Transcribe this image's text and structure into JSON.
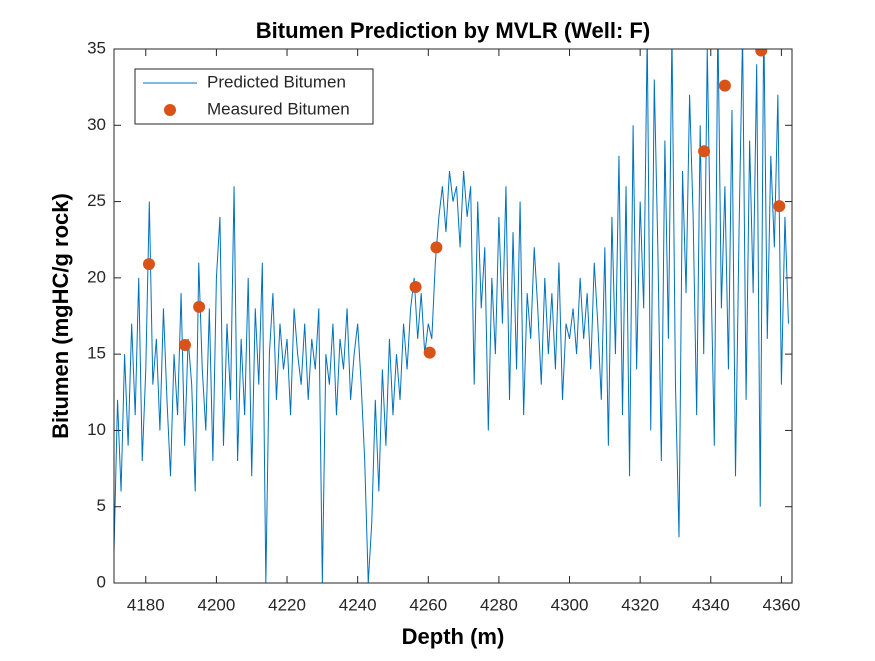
{
  "chart_data": {
    "type": "line",
    "title": "Bitumen Prediction by MVLR (Well: F)",
    "x_label": "Depth (m)",
    "y_label": "Bitumen (mgHC/g rock)",
    "xlim": [
      4171,
      4363
    ],
    "ylim": [
      0,
      35
    ],
    "xticks": [
      4180,
      4200,
      4220,
      4240,
      4260,
      4280,
      4300,
      4320,
      4340,
      4360
    ],
    "yticks": [
      0,
      5,
      10,
      15,
      20,
      25,
      30,
      35
    ],
    "legend": "upper left",
    "series": [
      {
        "name": "Predicted Bitumen",
        "type": "line",
        "color": "#0072BD",
        "x": [
          4171,
          4172,
          4173,
          4174,
          4175,
          4176,
          4177,
          4178,
          4179,
          4180,
          4181,
          4182,
          4183,
          4184,
          4185,
          4186,
          4187,
          4188,
          4189,
          4190,
          4191,
          4192,
          4193,
          4194,
          4195,
          4196,
          4197,
          4198,
          4199,
          4200,
          4201,
          4202,
          4203,
          4204,
          4205,
          4206,
          4207,
          4208,
          4209,
          4210,
          4211,
          4212,
          4213,
          4214,
          4215,
          4216,
          4217,
          4218,
          4219,
          4220,
          4221,
          4222,
          4223,
          4224,
          4225,
          4226,
          4227,
          4228,
          4229,
          4230,
          4231,
          4232,
          4233,
          4234,
          4235,
          4236,
          4237,
          4238,
          4239,
          4240,
          4241,
          4242,
          4243,
          4244,
          4245,
          4246,
          4247,
          4248,
          4249,
          4250,
          4251,
          4252,
          4253,
          4254,
          4255,
          4256,
          4257,
          4258,
          4259,
          4260,
          4261,
          4262,
          4263,
          4264,
          4265,
          4266,
          4267,
          4268,
          4269,
          4270,
          4271,
          4272,
          4273,
          4274,
          4275,
          4276,
          4277,
          4278,
          4279,
          4280,
          4281,
          4282,
          4283,
          4284,
          4285,
          4286,
          4287,
          4288,
          4289,
          4290,
          4291,
          4292,
          4293,
          4294,
          4295,
          4296,
          4297,
          4298,
          4299,
          4300,
          4301,
          4302,
          4303,
          4304,
          4305,
          4306,
          4307,
          4308,
          4309,
          4310,
          4311,
          4312,
          4313,
          4314,
          4315,
          4316,
          4317,
          4318,
          4319,
          4320,
          4321,
          4322,
          4323,
          4324,
          4325,
          4326,
          4327,
          4328,
          4329,
          4330,
          4331,
          4332,
          4333,
          4334,
          4335,
          4336,
          4337,
          4338,
          4339,
          4340,
          4341,
          4342,
          4343,
          4344,
          4345,
          4346,
          4347,
          4348,
          4349,
          4350,
          4351,
          4352,
          4353,
          4354,
          4355,
          4356,
          4357,
          4358,
          4359,
          4360,
          4361,
          4362
        ],
        "values": [
          2,
          12,
          6,
          15,
          9,
          17,
          11,
          20,
          8,
          14,
          25,
          13,
          16,
          10,
          18,
          12,
          7,
          15,
          11,
          19,
          9,
          16,
          13,
          6,
          21,
          14,
          10,
          18,
          8,
          20,
          24,
          9,
          17,
          12,
          26,
          8,
          16,
          11,
          20,
          7,
          18,
          13,
          21,
          0,
          15,
          19,
          12,
          17,
          14,
          16,
          11,
          18,
          15,
          13,
          17,
          12,
          16,
          14,
          18,
          0,
          15,
          13,
          17,
          11,
          16,
          14,
          18,
          12,
          15,
          17,
          13,
          8,
          0,
          4,
          12,
          6,
          14,
          9,
          16,
          11,
          15,
          12,
          17,
          14,
          18,
          20,
          16,
          19,
          15,
          17,
          16,
          21,
          24,
          26,
          23,
          27,
          25,
          26,
          22,
          27,
          24,
          26,
          13,
          25,
          18,
          22,
          10,
          20,
          15,
          24,
          17,
          26,
          12,
          23,
          14,
          25,
          11,
          19,
          16,
          22,
          18,
          13,
          20,
          15,
          19,
          14,
          21,
          12,
          17,
          16,
          18,
          15,
          20,
          16,
          19,
          14,
          21,
          17,
          12,
          22,
          9,
          24,
          15,
          28,
          11,
          26,
          7,
          30,
          14,
          25,
          18,
          36,
          10,
          33,
          22,
          8,
          29,
          16,
          36,
          13,
          3,
          27,
          19,
          32,
          24,
          11,
          30,
          15,
          35,
          21,
          9,
          37,
          18,
          26,
          14,
          31,
          7,
          23,
          36,
          12,
          29,
          19,
          34,
          5,
          37,
          16,
          28,
          22,
          32,
          13,
          24,
          17
        ]
      },
      {
        "name": "Measured Bitumen",
        "type": "scatter",
        "color": "#D95319",
        "x": [
          4180.9,
          4191.1,
          4195.1,
          4256.4,
          4260.4,
          4262.3,
          4338.1,
          4344.0,
          4354.3,
          4359.4
        ],
        "values": [
          20.9,
          15.6,
          18.1,
          19.4,
          15.1,
          22.0,
          28.3,
          32.6,
          34.9,
          24.7
        ]
      }
    ]
  }
}
